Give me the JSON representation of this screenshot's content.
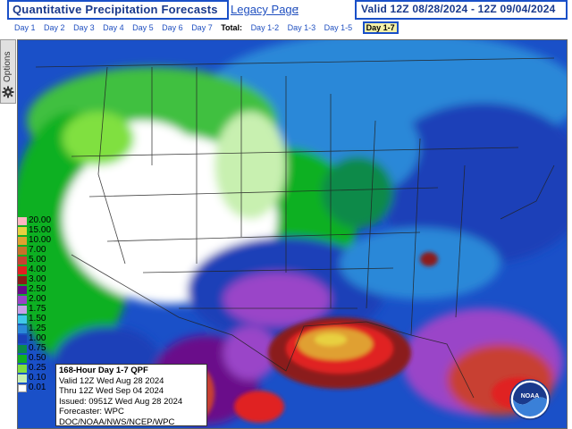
{
  "header": {
    "title": "Quantitative Precipitation Forecasts",
    "legacy_link": "Legacy Page",
    "colon": ":",
    "valid": "Valid 12Z 08/28/2024 - 12Z 09/04/2024"
  },
  "tabs": {
    "days": [
      "Day 1",
      "Day 2",
      "Day 3",
      "Day 4",
      "Day 5",
      "Day 6",
      "Day 7"
    ],
    "total_label": "Total:",
    "totals": [
      "Day 1-2",
      "Day 1-3",
      "Day 1-5"
    ],
    "selected": "Day 1-7"
  },
  "options_label": "Options",
  "legend": {
    "values": [
      "20.00",
      "15.00",
      "10.00",
      "7.00",
      "5.00",
      "4.00",
      "3.00",
      "2.50",
      "2.00",
      "1.75",
      "1.50",
      "1.25",
      "1.00",
      "0.75",
      "0.50",
      "0.25",
      "0.10",
      "0.01"
    ],
    "colors": [
      "#ffb6c1",
      "#e8d040",
      "#e0a030",
      "#c8702a",
      "#c84030",
      "#e02020",
      "#8b1a1a",
      "#6a0a8a",
      "#9a44c8",
      "#c8a0e8",
      "#40c8e8",
      "#2a88d8",
      "#1a40b8",
      "#0a8a4a",
      "#10b020",
      "#80e040",
      "#c8f0b0",
      "#ffffff"
    ]
  },
  "info": {
    "heading": "168-Hour Day 1-7 QPF",
    "valid": "Valid 12Z Wed Aug 28 2024",
    "thru": "Thru 12Z Wed Sep 04 2024",
    "issued": "Issued: 0951Z Wed Aug 28 2024",
    "forecaster": "Forecaster: WPC",
    "agency": "DOC/NOAA/NWS/NCEP/WPC"
  },
  "logo_text": "NOAA"
}
